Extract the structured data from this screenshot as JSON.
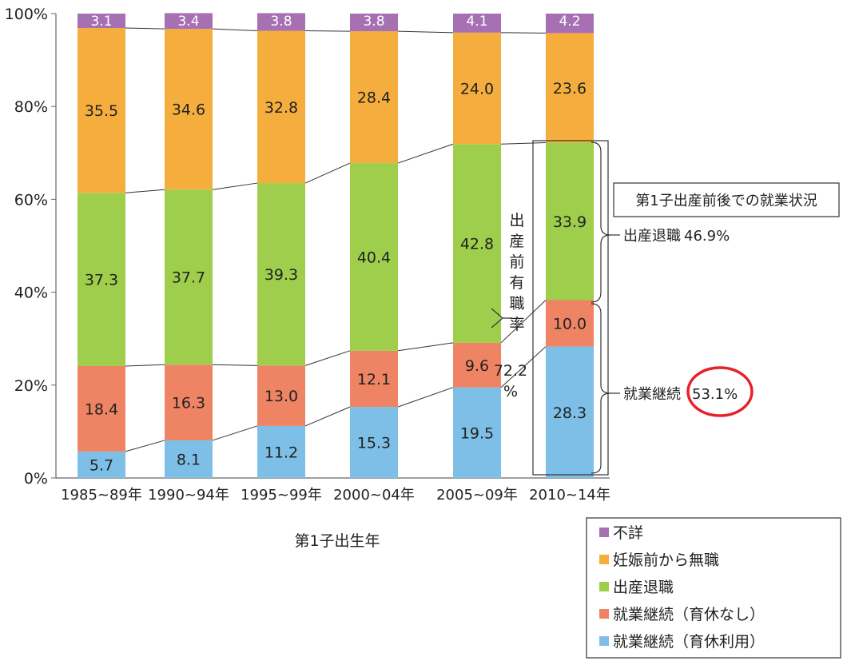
{
  "chart_data": {
    "type": "bar",
    "stacked": true,
    "categories": [
      "1985~89年",
      "1990~94年",
      "1995~99年",
      "2000~04年",
      "2005~09年",
      "2010~14年"
    ],
    "xlabel": "第1子出生年",
    "ylim": [
      0,
      100
    ],
    "y_ticks": [
      "0%",
      "20%",
      "40%",
      "60%",
      "80%",
      "100%"
    ],
    "series": [
      {
        "name": "就業継続（育休利用）",
        "color": "#7ebfe8",
        "values": [
          5.7,
          8.1,
          11.2,
          15.3,
          19.5,
          28.3
        ]
      },
      {
        "name": "就業継続（育休なし）",
        "color": "#ee8463",
        "values": [
          18.4,
          16.3,
          13.0,
          12.1,
          9.6,
          10.0
        ]
      },
      {
        "name": "出産退職",
        "color": "#9fce4c",
        "values": [
          37.3,
          37.7,
          39.3,
          40.4,
          42.8,
          33.9
        ]
      },
      {
        "name": "妊娠前から無職",
        "color": "#f5ae3e",
        "values": [
          35.5,
          34.6,
          32.8,
          28.4,
          24.0,
          23.6
        ]
      },
      {
        "name": "不詳",
        "color": "#a670b3",
        "values": [
          3.1,
          3.4,
          3.8,
          3.8,
          4.1,
          4.2
        ]
      }
    ],
    "labels": [
      [
        "5.7",
        "8.1",
        "11.2",
        "15.3",
        "19.5",
        "28.3"
      ],
      [
        "18.4",
        "16.3",
        "13.0",
        "12.1",
        "9.6",
        "10.0"
      ],
      [
        "37.3",
        "37.7",
        "39.3",
        "40.4",
        "42.8",
        "33.9"
      ],
      [
        "35.5",
        "34.6",
        "32.8",
        "28.4",
        "24.0",
        "23.6"
      ],
      [
        "3.1",
        "3.4",
        "3.8",
        "3.8",
        "4.1",
        "4.2"
      ]
    ],
    "legend_position": "bottom-right",
    "legend_order": [
      4,
      3,
      2,
      1,
      0
    ],
    "annotations": {
      "prebirth_employment_vertical": "出産前有職率",
      "prebirth_employment_value": "72.2",
      "prebirth_employment_unit": "%",
      "status_box_title": "第1子出産前後での就業状況",
      "quit_label": "出産退職",
      "quit_value": "46.9%",
      "continue_label": "就業継続",
      "continue_value": "53.1%",
      "highlight_color": "#e8202a"
    }
  }
}
